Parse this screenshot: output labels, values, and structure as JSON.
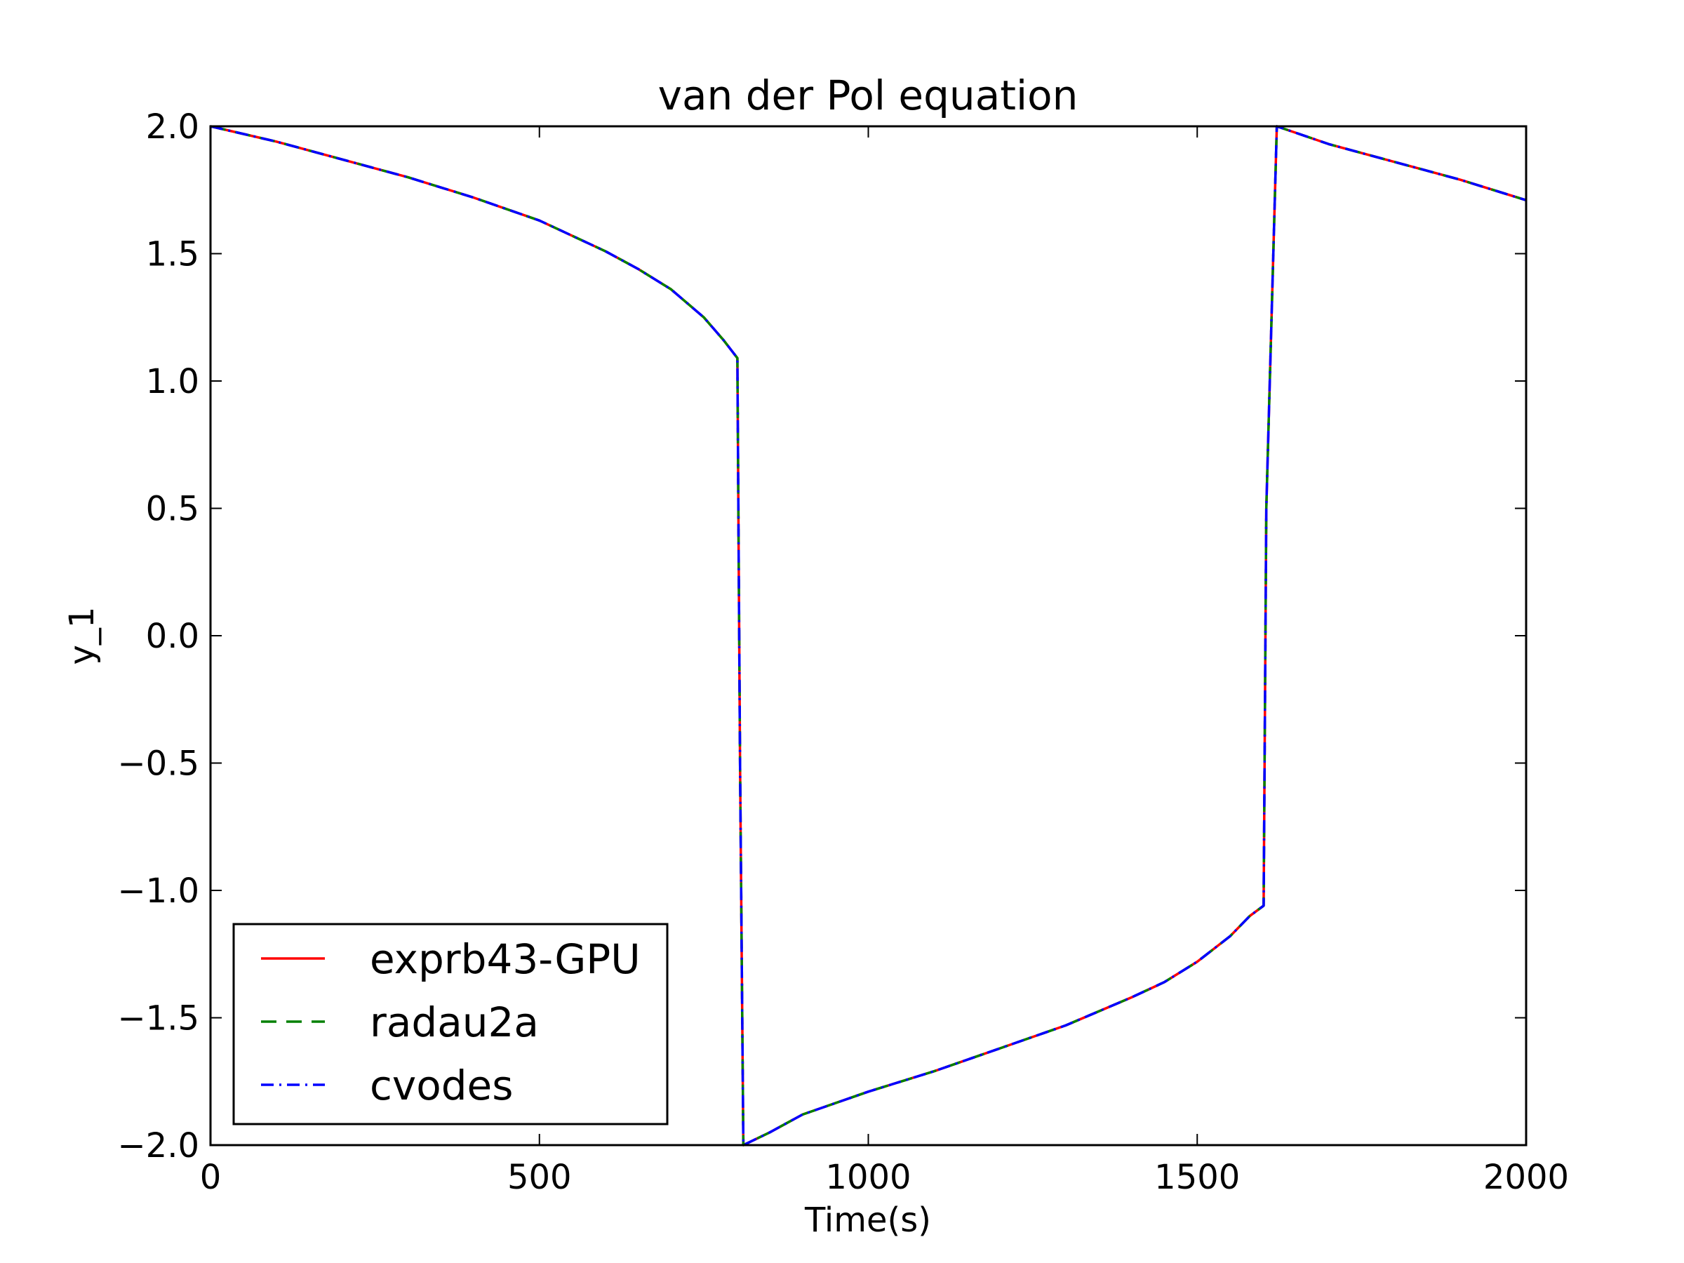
{
  "chart_data": {
    "type": "line",
    "title": "van der Pol equation",
    "xlabel": "Time(s)",
    "ylabel": "y_1",
    "xlim": [
      0,
      2000
    ],
    "ylim": [
      -2.0,
      2.0
    ],
    "xticks": [
      "0",
      "500",
      "1000",
      "1500",
      "2000"
    ],
    "yticks": [
      "2.0",
      "1.5",
      "1.0",
      "0.5",
      "0.0",
      "−0.5",
      "−1.0",
      "−1.5",
      "−2.0"
    ],
    "xtick_values": [
      0,
      500,
      1000,
      1500,
      2000
    ],
    "ytick_values": [
      2.0,
      1.5,
      1.0,
      0.5,
      0.0,
      -0.5,
      -1.0,
      -1.5,
      -2.0
    ],
    "grid": false,
    "legend_position": "lower-left",
    "x": [
      0,
      100,
      200,
      300,
      400,
      500,
      600,
      650,
      700,
      750,
      780,
      801,
      805,
      810,
      850,
      900,
      1000,
      1100,
      1200,
      1300,
      1400,
      1450,
      1500,
      1550,
      1580,
      1601,
      1605,
      1621,
      1700,
      1800,
      1900,
      2000
    ],
    "series": [
      {
        "name": "exprb43-GPU",
        "color": "#ff0000",
        "style": "solid",
        "values": [
          2.0,
          1.94,
          1.87,
          1.8,
          1.72,
          1.63,
          1.51,
          1.44,
          1.36,
          1.25,
          1.16,
          1.09,
          -0.5,
          -2.0,
          -1.95,
          -1.88,
          -1.79,
          -1.71,
          -1.62,
          -1.53,
          -1.42,
          -1.36,
          -1.28,
          -1.18,
          -1.1,
          -1.06,
          0.5,
          2.0,
          1.93,
          1.86,
          1.79,
          1.71
        ]
      },
      {
        "name": "radau2a",
        "color": "#008000",
        "style": "dashed",
        "values": [
          2.0,
          1.94,
          1.87,
          1.8,
          1.72,
          1.63,
          1.51,
          1.44,
          1.36,
          1.25,
          1.16,
          1.09,
          -0.5,
          -2.0,
          -1.95,
          -1.88,
          -1.79,
          -1.71,
          -1.62,
          -1.53,
          -1.42,
          -1.36,
          -1.28,
          -1.18,
          -1.1,
          -1.06,
          0.5,
          2.0,
          1.93,
          1.86,
          1.79,
          1.71
        ]
      },
      {
        "name": "cvodes",
        "color": "#0000ff",
        "style": "dashdot",
        "values": [
          2.0,
          1.94,
          1.87,
          1.8,
          1.72,
          1.63,
          1.51,
          1.44,
          1.36,
          1.25,
          1.16,
          1.09,
          -0.5,
          -2.0,
          -1.95,
          -1.88,
          -1.79,
          -1.71,
          -1.62,
          -1.53,
          -1.42,
          -1.36,
          -1.28,
          -1.18,
          -1.1,
          -1.06,
          0.5,
          2.0,
          1.93,
          1.86,
          1.79,
          1.71
        ]
      }
    ]
  }
}
